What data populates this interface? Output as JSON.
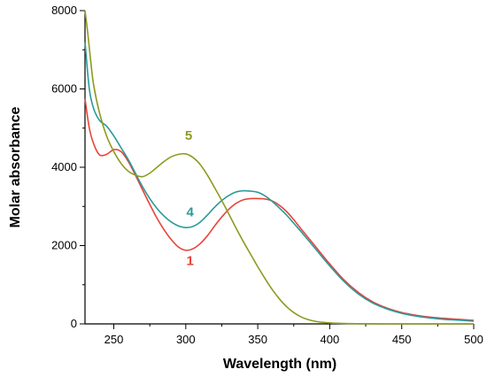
{
  "chart_data": {
    "type": "line",
    "title": "",
    "xlabel": "Wavelength (nm)",
    "ylabel": "Molar absorbance",
    "xlim": [
      230,
      500
    ],
    "ylim": [
      0,
      8000
    ],
    "xticks": [
      250,
      300,
      350,
      400,
      450,
      500
    ],
    "yticks": [
      0,
      2000,
      4000,
      6000,
      8000
    ],
    "grid": false,
    "legend": "none",
    "series": [
      {
        "name": "1",
        "color": "#e8443a",
        "x": [
          230,
          233,
          236,
          240,
          245,
          250,
          255,
          260,
          265,
          270,
          275,
          280,
          285,
          290,
          295,
          300,
          305,
          310,
          315,
          320,
          325,
          330,
          335,
          340,
          345,
          350,
          355,
          360,
          365,
          370,
          375,
          380,
          390,
          400,
          410,
          420,
          430,
          440,
          450,
          460,
          470,
          480,
          490,
          500
        ],
        "y": [
          5750,
          5000,
          4600,
          4320,
          4330,
          4450,
          4400,
          4150,
          3800,
          3420,
          3050,
          2700,
          2400,
          2150,
          1960,
          1880,
          1920,
          2050,
          2250,
          2500,
          2730,
          2930,
          3080,
          3170,
          3200,
          3200,
          3190,
          3140,
          3030,
          2870,
          2660,
          2430,
          1980,
          1530,
          1120,
          800,
          560,
          400,
          290,
          220,
          170,
          140,
          115,
          90
        ]
      },
      {
        "name": "4",
        "color": "#2a9a9a",
        "x": [
          230,
          233,
          236,
          240,
          245,
          250,
          255,
          260,
          265,
          270,
          275,
          280,
          285,
          290,
          295,
          300,
          305,
          310,
          315,
          320,
          325,
          330,
          335,
          340,
          345,
          350,
          355,
          360,
          365,
          370,
          375,
          380,
          390,
          400,
          410,
          420,
          430,
          440,
          450,
          460,
          470,
          480,
          490,
          500
        ],
        "y": [
          7200,
          6000,
          5500,
          5200,
          5050,
          4800,
          4500,
          4200,
          3850,
          3500,
          3200,
          2950,
          2750,
          2600,
          2500,
          2460,
          2490,
          2600,
          2780,
          2980,
          3150,
          3280,
          3370,
          3400,
          3390,
          3360,
          3270,
          3130,
          2960,
          2780,
          2570,
          2360,
          1920,
          1480,
          1080,
          760,
          530,
          380,
          270,
          200,
          150,
          115,
          95,
          70
        ]
      },
      {
        "name": "5",
        "color": "#8e9a1e",
        "x": [
          230,
          232,
          234,
          236,
          240,
          245,
          250,
          255,
          260,
          265,
          270,
          275,
          280,
          285,
          290,
          295,
          300,
          305,
          310,
          315,
          320,
          325,
          330,
          335,
          340,
          345,
          350,
          355,
          360,
          365,
          370,
          375,
          380,
          385,
          390,
          395,
          400,
          410,
          420,
          430,
          440,
          450,
          460,
          470,
          480,
          490,
          500
        ],
        "y": [
          8000,
          7400,
          6700,
          6100,
          5400,
          4800,
          4400,
          4100,
          3900,
          3800,
          3760,
          3850,
          4000,
          4150,
          4270,
          4330,
          4340,
          4250,
          4070,
          3800,
          3480,
          3150,
          2800,
          2440,
          2100,
          1780,
          1460,
          1160,
          880,
          640,
          440,
          290,
          180,
          110,
          65,
          40,
          25,
          10,
          5,
          2,
          0,
          0,
          0,
          0,
          0,
          0,
          0
        ]
      }
    ],
    "annotations": [
      {
        "text": "5",
        "x": 302,
        "y": 4700
      },
      {
        "text": "4",
        "x": 303,
        "y": 2750
      },
      {
        "text": "1",
        "x": 303,
        "y": 1500
      }
    ]
  }
}
